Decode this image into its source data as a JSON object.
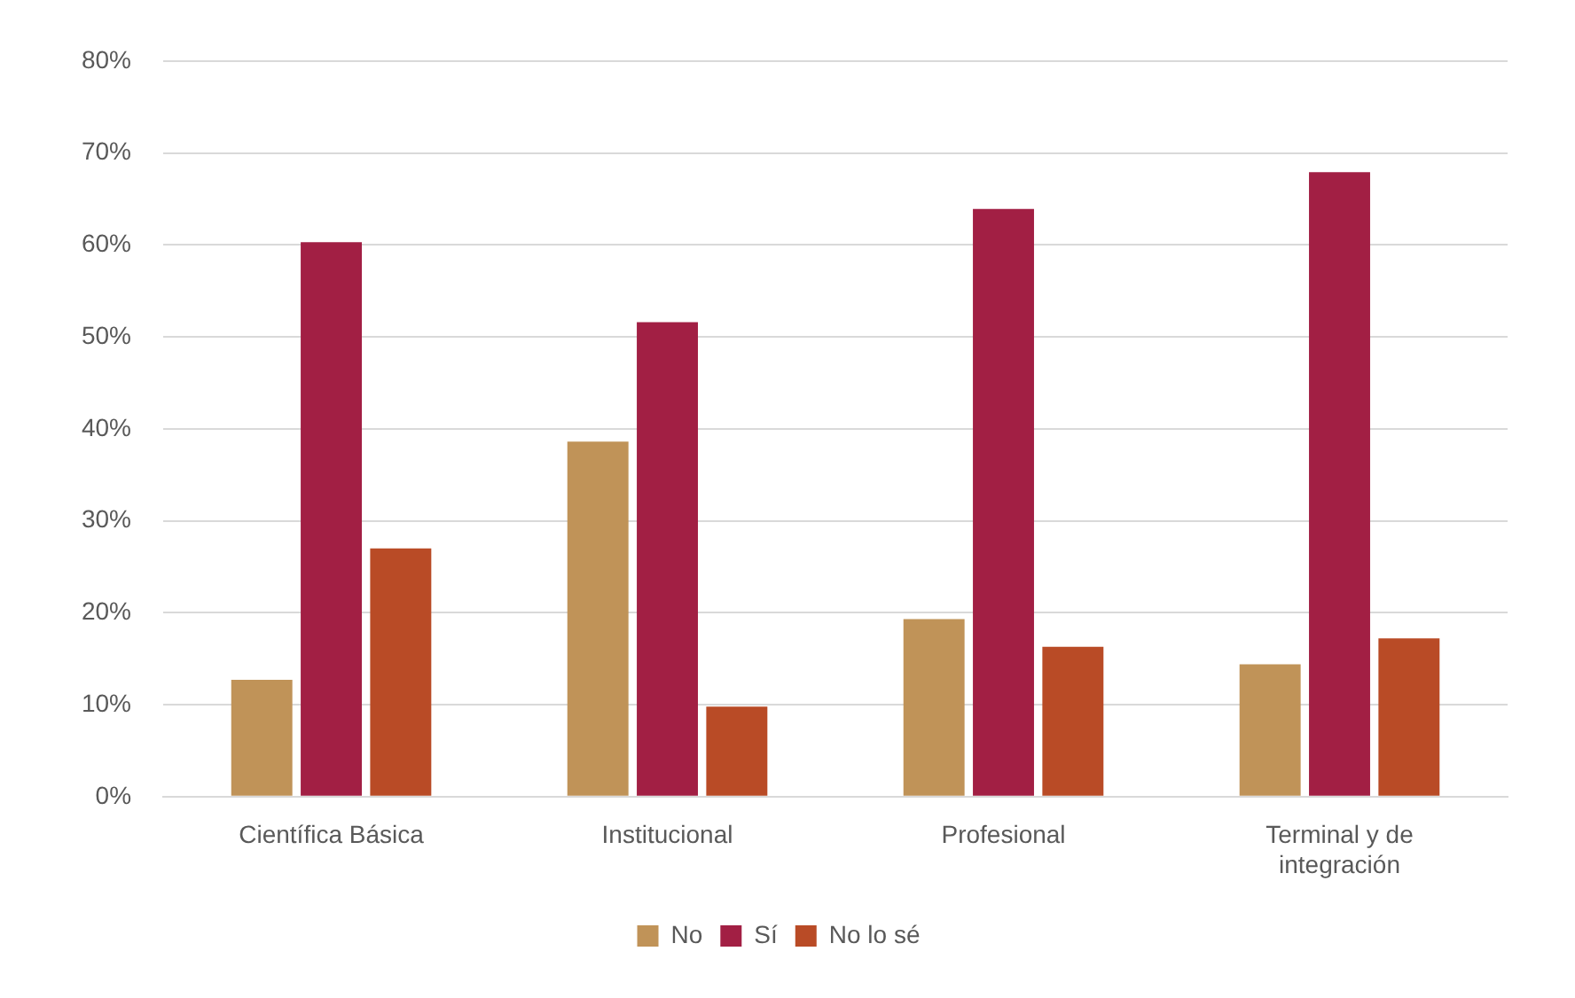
{
  "chart_data": {
    "type": "bar",
    "categories": [
      "Científica Básica",
      "Institucional",
      "Profesional",
      "Terminal y de integración"
    ],
    "series": [
      {
        "name": "No",
        "color": "#c09358",
        "values": [
          12.7,
          38.6,
          19.3,
          14.4
        ]
      },
      {
        "name": "Sí",
        "color": "#a21f44",
        "values": [
          60.3,
          51.6,
          63.9,
          67.9
        ]
      },
      {
        "name": "No lo sé",
        "color": "#b94b26",
        "values": [
          27,
          9.8,
          16.3,
          17.2
        ]
      }
    ],
    "ylim": [
      0,
      80
    ],
    "yticks": [
      {
        "value": 0,
        "label": "0%"
      },
      {
        "value": 10,
        "label": "10%"
      },
      {
        "value": 20,
        "label": "20%"
      },
      {
        "value": 30,
        "label": "30%"
      },
      {
        "value": 40,
        "label": "40%"
      },
      {
        "value": 50,
        "label": "50%"
      },
      {
        "value": 60,
        "label": "60%"
      },
      {
        "value": 70,
        "label": "70%"
      },
      {
        "value": 80,
        "label": "80%"
      }
    ],
    "grid": "y",
    "legend": "bottom"
  }
}
